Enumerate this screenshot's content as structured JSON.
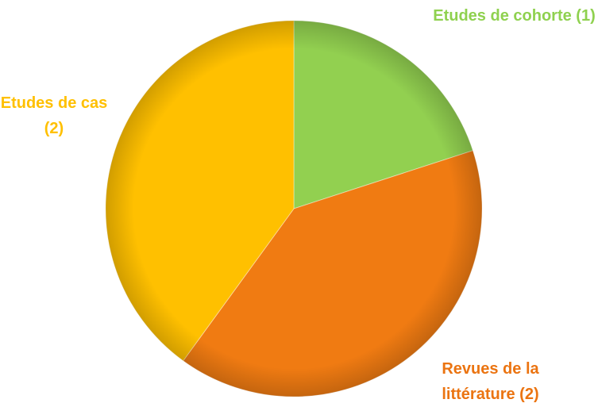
{
  "chart_data": {
    "type": "pie",
    "categories": [
      "Etudes de cohorte",
      "Revues de la littérature",
      "Etudes de cas"
    ],
    "values": [
      1,
      2,
      2
    ],
    "value_labels": [
      "(1)",
      "(2)",
      "(2)"
    ],
    "colors": [
      "#92d050",
      "#f07b12",
      "#ffc000"
    ],
    "label_colors": [
      "#8fd14f",
      "#eb7411",
      "#ffc000"
    ]
  }
}
